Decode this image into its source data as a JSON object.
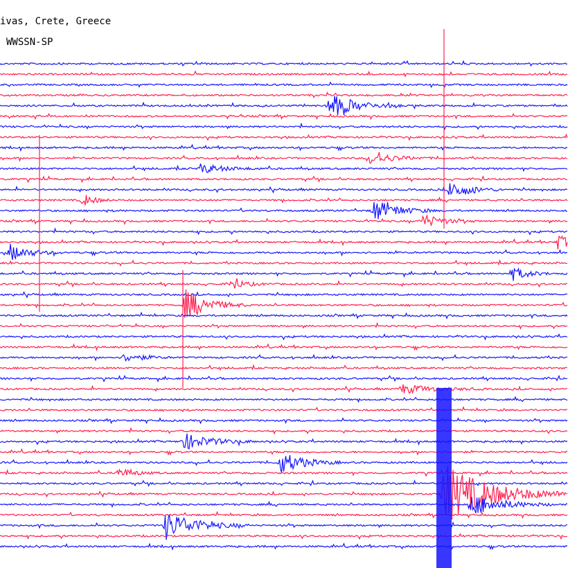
{
  "header": {
    "station": "ivas, Crete, Greece",
    "instrument": "WWSSN-SP"
  }
}
